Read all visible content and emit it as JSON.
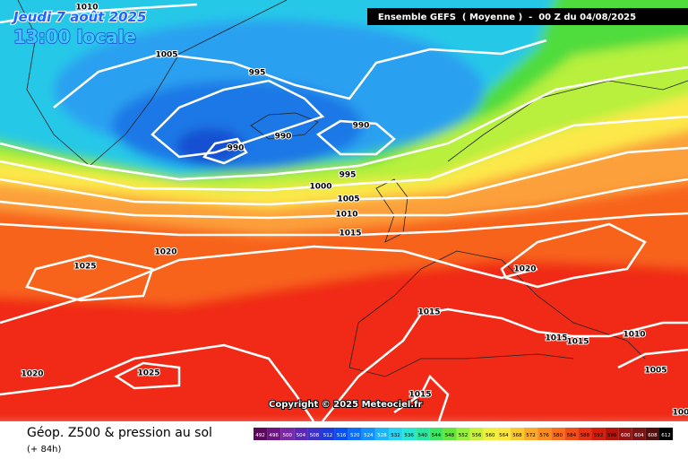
{
  "header": {
    "date": "Jeudi 7 août 2025",
    "time": "13:00 locale",
    "run": "Ensemble GEFS  ( Moyenne )  -  00 Z du 04/08/2025"
  },
  "isobar_labels": [
    "1010",
    "1005",
    "995",
    "990",
    "990",
    "990",
    "995",
    "1000",
    "1005",
    "1010",
    "1015",
    "1020",
    "1025",
    "1020",
    "1015",
    "1015",
    "1015",
    "1010",
    "1005",
    "100",
    "1020",
    "1025",
    "1015"
  ],
  "copyright": "Copyright © 2025 Meteociel.fr",
  "footer": {
    "title": "Géop. Z500 & pression au sol",
    "lead": "(+ 84h)"
  },
  "color_scale": {
    "labels": [
      "492",
      "496",
      "500",
      "504",
      "508",
      "512",
      "516",
      "520",
      "524",
      "528",
      "532",
      "536",
      "540",
      "544",
      "548",
      "552",
      "556",
      "560",
      "564",
      "568",
      "572",
      "576",
      "580",
      "584",
      "588",
      "592",
      "596",
      "600",
      "604",
      "608",
      "612"
    ]
  }
}
